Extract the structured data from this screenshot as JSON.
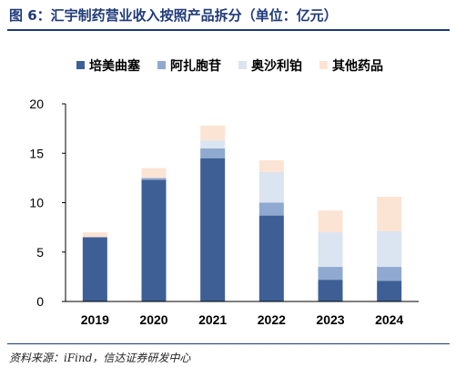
{
  "title": "图 6：汇宇制药营业收入按照产品拆分（单位：亿元）",
  "source": "资料来源：iFind，信达证券研发中心",
  "chart_data": {
    "type": "bar",
    "stacked": true,
    "unit": "亿元",
    "categories": [
      "2019",
      "2020",
      "2021",
      "2022",
      "2023",
      "2024"
    ],
    "series": [
      {
        "name": "培美曲塞",
        "color": "#3d5f95",
        "values": [
          6.5,
          12.3,
          14.5,
          8.7,
          2.2,
          2.1
        ]
      },
      {
        "name": "阿扎胞苷",
        "color": "#8fa9d0",
        "values": [
          0,
          0.2,
          1.0,
          1.3,
          1.3,
          1.4
        ]
      },
      {
        "name": "奥沙利铂",
        "color": "#dbe4f1",
        "values": [
          0,
          0,
          0.8,
          3.1,
          3.5,
          3.6
        ]
      },
      {
        "name": "其他药品",
        "color": "#fbe4d4",
        "values": [
          0.5,
          1.0,
          1.5,
          1.2,
          2.2,
          3.5
        ]
      }
    ],
    "ylim": [
      0,
      20
    ],
    "yticks": [
      0,
      5,
      10,
      15,
      20
    ],
    "legend_position": "top",
    "grid": false
  }
}
